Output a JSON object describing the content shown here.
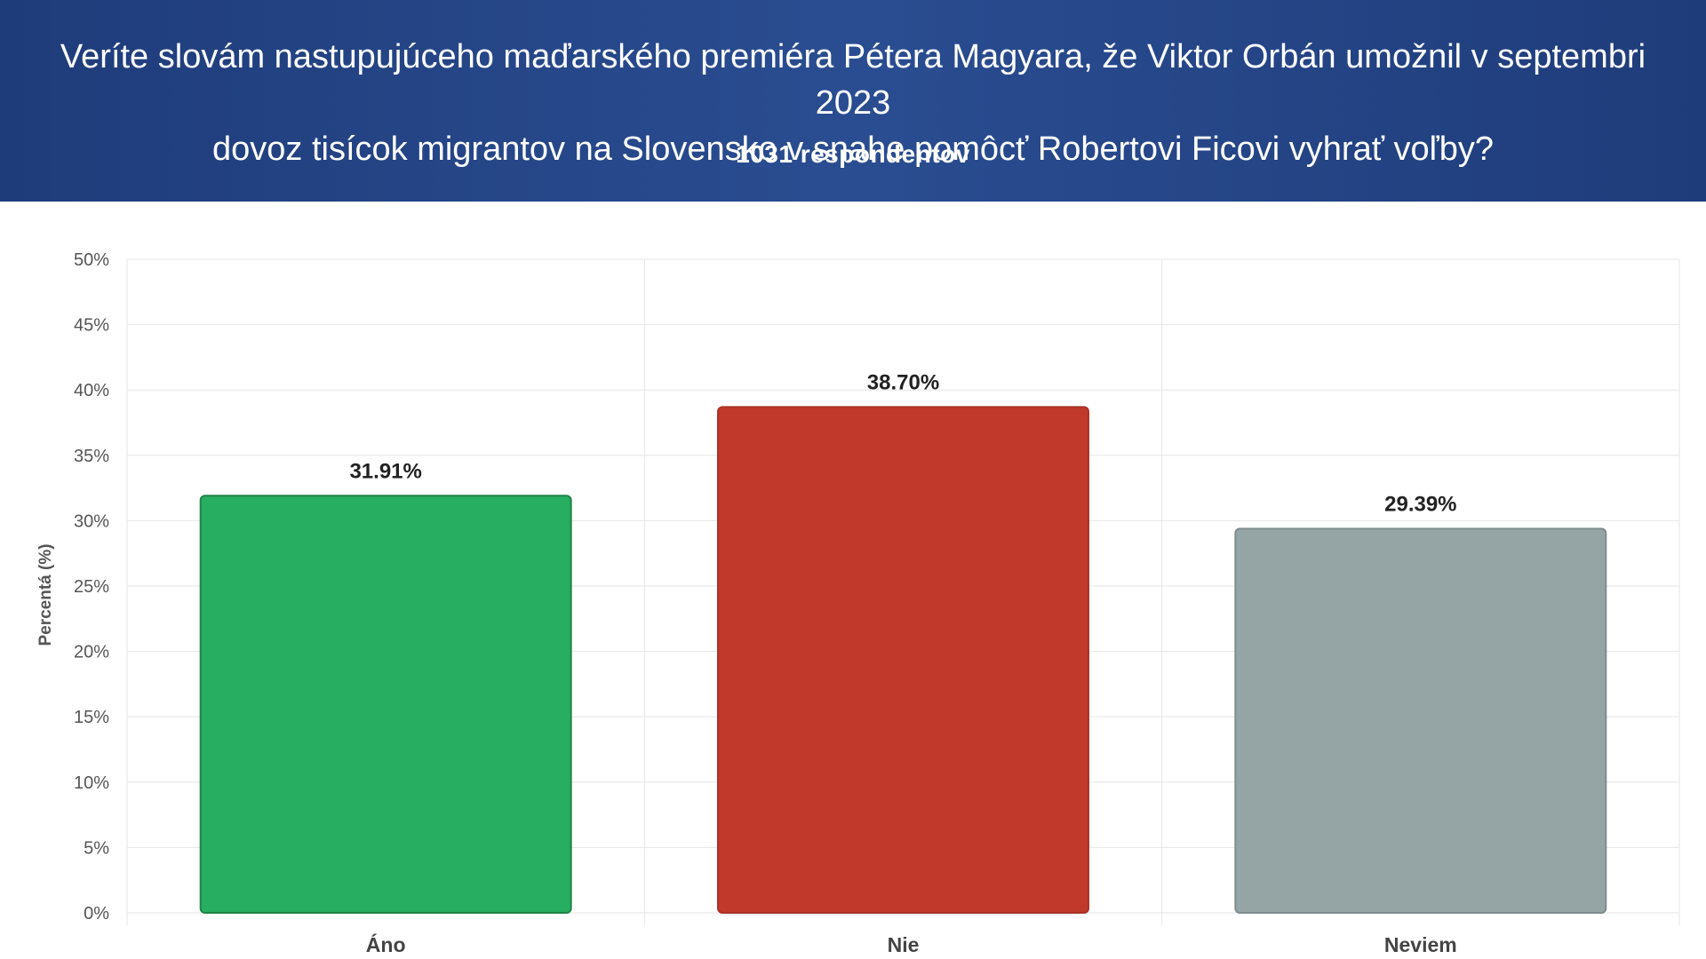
{
  "header": {
    "title_line1": "Veríte slovám nastupujúceho maďarského premiéra Pétera Magyara, že Viktor Orbán umožnil v septembri 2023",
    "title_line2": "dovoz tisícok migrantov na Slovensko v snahe pomôcť Robertovi Ficovi vyhrať voľby?",
    "subtitle": "1031 respondentov",
    "background_color": "#24468a"
  },
  "chart_data": {
    "type": "bar",
    "title": "Veríte slovám nastupujúceho maďarského premiéra Pétera Magyara, že Viktor Orbán umožnil v septembri 2023 dovoz tisícok migrantov na Slovensko v snahe pomôcť Robertovi Ficovi vyhrať voľby?",
    "subtitle": "1031 respondentov",
    "categories": [
      "Áno",
      "Nie",
      "Neviem"
    ],
    "values": [
      31.91,
      38.7,
      29.39
    ],
    "value_labels": [
      "31.91%",
      "38.70%",
      "29.39%"
    ],
    "colors": [
      "#27ae60",
      "#c0392b",
      "#95a5a6"
    ],
    "border_colors": [
      "#1e8449",
      "#a93226",
      "#7f8c8d"
    ],
    "xlabel": "",
    "ylabel": "Percentá (%)",
    "ylim": [
      0,
      50
    ],
    "yticks": [
      0,
      5,
      10,
      15,
      20,
      25,
      30,
      35,
      40,
      45,
      50
    ],
    "ytick_labels": [
      "0%",
      "5%",
      "10%",
      "15%",
      "20%",
      "25%",
      "30%",
      "35%",
      "40%",
      "45%",
      "50%"
    ],
    "grid": true,
    "legend": "none"
  }
}
